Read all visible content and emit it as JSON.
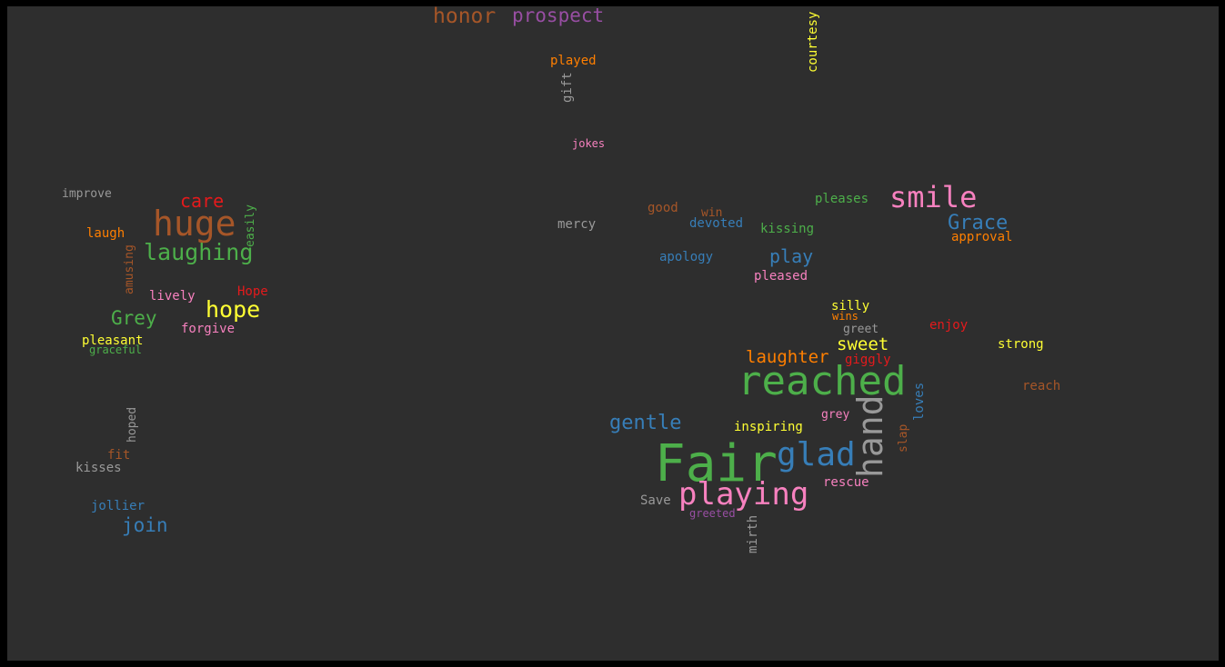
{
  "palette": {
    "background": "#2e2e2e",
    "frame": "#000000",
    "green": "#4daf4a",
    "blue": "#377eb8",
    "pink": "#f781bf",
    "gray": "#999999",
    "orange": "#ff7f00",
    "yellow": "#ffff33",
    "red": "#e41a1c",
    "brown": "#a65628",
    "purple": "#984ea3"
  },
  "words": [
    {
      "text": "Fair",
      "color": "#4daf4a"
    },
    {
      "text": "reached",
      "color": "#4daf4a"
    },
    {
      "text": "hand",
      "color": "#999999"
    },
    {
      "text": "glad",
      "color": "#377eb8"
    },
    {
      "text": "playing",
      "color": "#f781bf"
    },
    {
      "text": "smile",
      "color": "#f781bf"
    },
    {
      "text": "huge",
      "color": "#a65628"
    },
    {
      "text": "laughing",
      "color": "#4daf4a"
    },
    {
      "text": "hope",
      "color": "#ffff33"
    },
    {
      "text": "Grace",
      "color": "#377eb8"
    },
    {
      "text": "honor",
      "color": "#a65628"
    },
    {
      "text": "prospect",
      "color": "#984ea3"
    },
    {
      "text": "gentle",
      "color": "#377eb8"
    },
    {
      "text": "Grey",
      "color": "#4daf4a"
    },
    {
      "text": "join",
      "color": "#377eb8"
    },
    {
      "text": "care",
      "color": "#e41a1c"
    },
    {
      "text": "laughter",
      "color": "#ff7f00"
    },
    {
      "text": "sweet",
      "color": "#ffff33"
    },
    {
      "text": "play",
      "color": "#377eb8"
    },
    {
      "text": "courtesy",
      "color": "#ffff33"
    },
    {
      "text": "played",
      "color": "#ff7f00"
    },
    {
      "text": "gift",
      "color": "#999999"
    },
    {
      "text": "jokes",
      "color": "#f781bf"
    },
    {
      "text": "improve",
      "color": "#999999"
    },
    {
      "text": "easily",
      "color": "#4daf4a"
    },
    {
      "text": "laugh",
      "color": "#ff7f00"
    },
    {
      "text": "amusing",
      "color": "#a65628"
    },
    {
      "text": "lively",
      "color": "#f781bf"
    },
    {
      "text": "Hope",
      "color": "#e41a1c"
    },
    {
      "text": "forgive",
      "color": "#f781bf"
    },
    {
      "text": "pleasant",
      "color": "#ffff33"
    },
    {
      "text": "graceful",
      "color": "#4daf4a"
    },
    {
      "text": "hoped",
      "color": "#999999"
    },
    {
      "text": "fit",
      "color": "#a65628"
    },
    {
      "text": "kisses",
      "color": "#999999"
    },
    {
      "text": "jollier",
      "color": "#377eb8"
    },
    {
      "text": "mercy",
      "color": "#999999"
    },
    {
      "text": "good",
      "color": "#a65628"
    },
    {
      "text": "win",
      "color": "#a65628"
    },
    {
      "text": "devoted",
      "color": "#377eb8"
    },
    {
      "text": "kissing",
      "color": "#4daf4a"
    },
    {
      "text": "pleases",
      "color": "#4daf4a"
    },
    {
      "text": "approval",
      "color": "#ff7f00"
    },
    {
      "text": "apology",
      "color": "#377eb8"
    },
    {
      "text": "pleased",
      "color": "#f781bf"
    },
    {
      "text": "silly",
      "color": "#ffff33"
    },
    {
      "text": "wins",
      "color": "#ff7f00"
    },
    {
      "text": "greet",
      "color": "#999999"
    },
    {
      "text": "enjoy",
      "color": "#e41a1c"
    },
    {
      "text": "strong",
      "color": "#ffff33"
    },
    {
      "text": "giggly",
      "color": "#e41a1c"
    },
    {
      "text": "reach",
      "color": "#a65628"
    },
    {
      "text": "loves",
      "color": "#377eb8"
    },
    {
      "text": "grey",
      "color": "#f781bf"
    },
    {
      "text": "inspiring",
      "color": "#ffff33"
    },
    {
      "text": "slap",
      "color": "#a65628"
    },
    {
      "text": "rescue",
      "color": "#f781bf"
    },
    {
      "text": "Save",
      "color": "#999999"
    },
    {
      "text": "greeted",
      "color": "#984ea3"
    },
    {
      "text": "mirth",
      "color": "#999999"
    }
  ]
}
